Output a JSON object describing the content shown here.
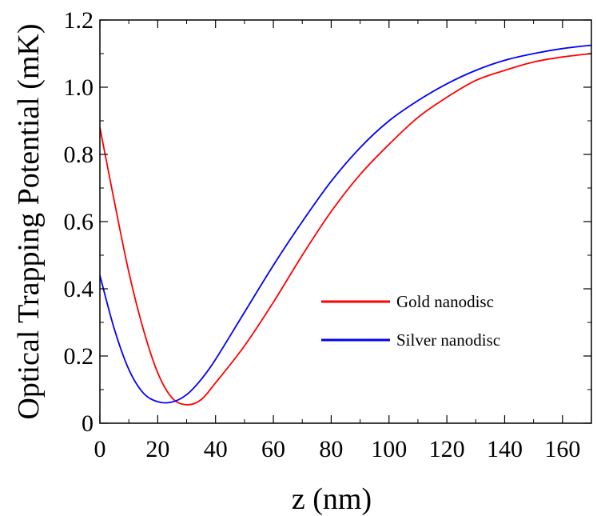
{
  "chart_data": {
    "type": "line",
    "title": "",
    "xlabel": "z (nm)",
    "ylabel": "Optical Trapping Potential (mK)",
    "xlim": [
      0,
      170
    ],
    "ylim": [
      0,
      1.2
    ],
    "x_ticks": [
      "0",
      "20",
      "40",
      "60",
      "80",
      "100",
      "120",
      "140",
      "160"
    ],
    "y_ticks": [
      "0",
      "0.2",
      "0.4",
      "0.6",
      "0.8",
      "1.0",
      "1.2"
    ],
    "grid": false,
    "legend_position": "center-right",
    "series": [
      {
        "name": "Gold nanodisc",
        "color": "#ff0000",
        "x": [
          0,
          5,
          10,
          15,
          20,
          25,
          30,
          35,
          40,
          50,
          60,
          70,
          80,
          90,
          100,
          110,
          120,
          130,
          140,
          150,
          160,
          170
        ],
        "y": [
          0.88,
          0.66,
          0.45,
          0.28,
          0.15,
          0.075,
          0.055,
          0.07,
          0.12,
          0.23,
          0.36,
          0.5,
          0.63,
          0.74,
          0.83,
          0.91,
          0.97,
          1.02,
          1.05,
          1.075,
          1.09,
          1.1
        ]
      },
      {
        "name": "Silver nanodisc",
        "color": "#0000ff",
        "x": [
          0,
          5,
          10,
          15,
          20,
          25,
          30,
          35,
          40,
          50,
          60,
          70,
          80,
          90,
          100,
          110,
          120,
          130,
          140,
          150,
          160,
          170
        ],
        "y": [
          0.44,
          0.28,
          0.16,
          0.09,
          0.064,
          0.063,
          0.085,
          0.13,
          0.19,
          0.33,
          0.47,
          0.6,
          0.72,
          0.82,
          0.9,
          0.96,
          1.01,
          1.05,
          1.08,
          1.1,
          1.115,
          1.125
        ]
      }
    ]
  }
}
